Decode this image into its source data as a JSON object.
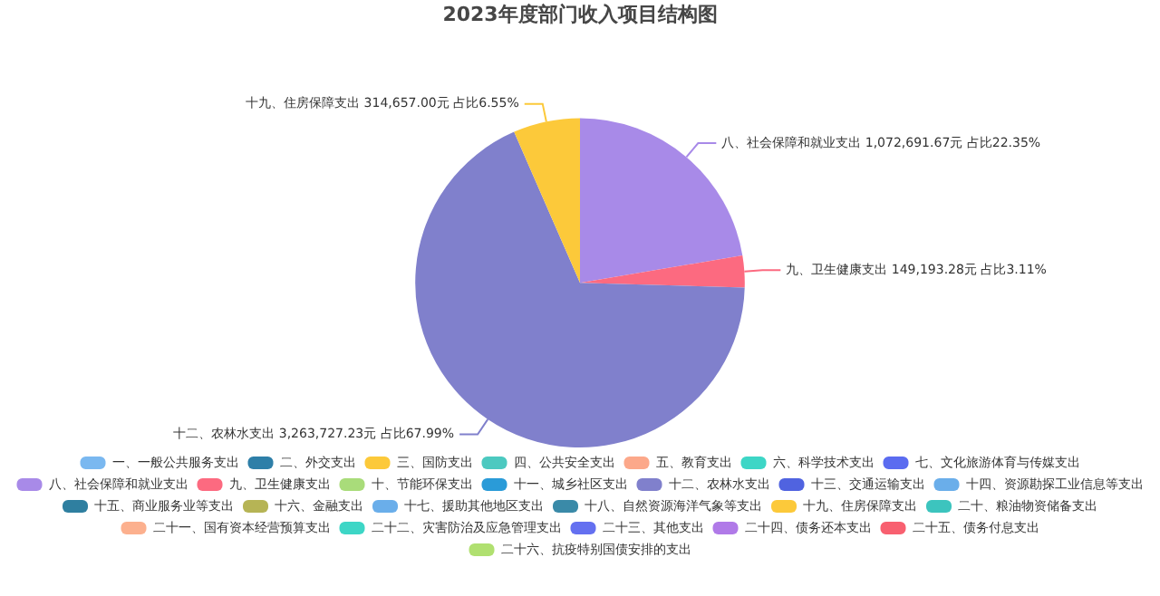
{
  "chart_data": {
    "type": "pie",
    "title": "2023年度部门收入项目结构图",
    "categories": [
      "一、一般公共服务支出",
      "二、外交支出",
      "三、国防支出",
      "四、公共安全支出",
      "五、教育支出",
      "六、科学技术支出",
      "七、文化旅游体育与传媒支出",
      "八、社会保障和就业支出",
      "九、卫生健康支出",
      "十、节能环保支出",
      "十一、城乡社区支出",
      "十二、农林水支出",
      "十三、交通运输支出",
      "十四、资源勘探工业信息等支出",
      "十五、商业服务业等支出",
      "十六、金融支出",
      "十七、援助其他地区支出",
      "十八、自然资源海洋气象等支出",
      "十九、住房保障支出",
      "二十、粮油物资储备支出",
      "二十一、国有资本经营预算支出",
      "二十二、灾害防治及应急管理支出",
      "二十三、其他支出",
      "二十四、债务还本支出",
      "二十五、债务付息支出",
      "二十六、抗疫特别国债安排的支出"
    ],
    "values": [
      0,
      0,
      0,
      0,
      0,
      0,
      0,
      1072691.67,
      149193.28,
      0,
      0,
      3263727.23,
      0,
      0,
      0,
      0,
      0,
      0,
      314657.0,
      0,
      0,
      0,
      0,
      0,
      0,
      0
    ],
    "colors": [
      "#7ab8f0",
      "#2e7fa8",
      "#fcc93a",
      "#4cc9c0",
      "#fca88a",
      "#3dd6c6",
      "#5b6cf0",
      "#a88ae8",
      "#fc6a80",
      "#a9dc7a",
      "#2a9bd8",
      "#8080cc",
      "#5063e0",
      "#6aaeea",
      "#2f7fa0",
      "#b6b455",
      "#6aaeea",
      "#3a8aa8",
      "#fcc93a",
      "#3cc4be",
      "#fcb08e",
      "#3dd6c6",
      "#6470f0",
      "#b07ae8",
      "#f86070",
      "#b0e070"
    ],
    "value_labels": [
      null,
      null,
      null,
      null,
      null,
      null,
      null,
      "八、社会保障和就业支出 1,072,691.67元 占比22.35%",
      "九、卫生健康支出 149,193.28元 占比3.11%",
      null,
      null,
      "十二、农林水支出 3,263,727.23元 占比67.99%",
      null,
      null,
      null,
      null,
      null,
      null,
      "十九、住房保障支出 314,657.00元 占比6.55%",
      null,
      null,
      null,
      null,
      null,
      null,
      null
    ],
    "legend": "bottom"
  }
}
